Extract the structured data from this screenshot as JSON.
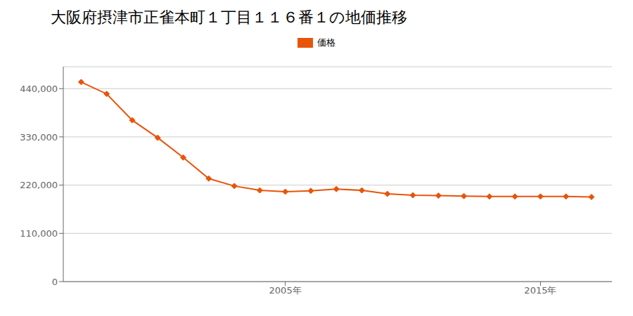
{
  "chart_data": {
    "type": "line",
    "title": "大阪府摂津市正雀本町１丁目１１６番１の地価推移",
    "x": [
      1997,
      1998,
      1999,
      2000,
      2001,
      2002,
      2003,
      2004,
      2005,
      2006,
      2007,
      2008,
      2009,
      2010,
      2011,
      2012,
      2013,
      2014,
      2015,
      2016,
      2017
    ],
    "series": [
      {
        "name": "価格",
        "color": "#e8540a",
        "values": [
          455000,
          428000,
          368000,
          328000,
          283000,
          235000,
          218000,
          208000,
          205000,
          207000,
          211000,
          208000,
          200000,
          197000,
          196000,
          195000,
          194000,
          194000,
          194000,
          194000,
          193000
        ],
        "marker": "diamond"
      }
    ],
    "xlim": [
      1996.3,
      2017.8
    ],
    "xticks": [
      {
        "value": 2005,
        "label": "2005年"
      },
      {
        "value": 2015,
        "label": "2015年"
      }
    ],
    "ylim": [
      0,
      490000
    ],
    "yticks": [
      0,
      {
        "value": 110000,
        "label": "110,000"
      },
      {
        "value": 220000,
        "label": "220,000"
      },
      {
        "value": 330000,
        "label": "330,000"
      },
      {
        "value": 440000,
        "label": "440,000"
      }
    ],
    "grid": "y",
    "legend": "top"
  }
}
